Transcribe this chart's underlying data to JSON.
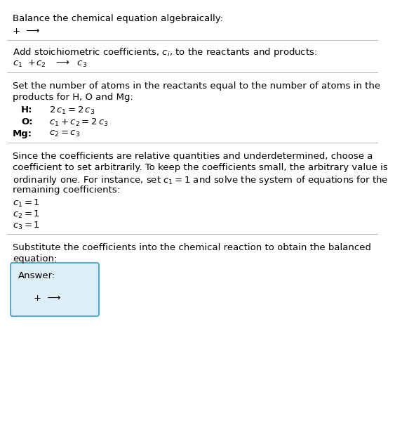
{
  "title": "Balance the chemical equation algebraically:",
  "line1": "+  ⟶",
  "section1_header": "Add stoichiometric coefficients, $c_i$, to the reactants and products:",
  "section1_eq_parts": [
    "$c_1$  +$c_2$",
    "  ⟶ $c_3$"
  ],
  "section2_line1": "Set the number of atoms in the reactants equal to the number of atoms in the",
  "section2_line2": "products for H, O and Mg:",
  "section3_line1": "Since the coefficients are relative quantities and underdetermined, choose a",
  "section3_line2": "coefficient to set arbitrarily. To keep the coefficients small, the arbitrary value is",
  "section3_line3": "ordinarily one. For instance, set $c_1 = 1$ and solve the system of equations for the",
  "section3_line4": "remaining coefficients:",
  "section4_line1": "Substitute the coefficients into the chemical reaction to obtain the balanced",
  "section4_line2": "equation:",
  "answer_label": "Answer:",
  "answer_eq": "+  ⟶",
  "bg_color": "#ffffff",
  "text_color": "#000000",
  "box_bg": "#ddeef7",
  "box_border": "#55aacc",
  "separator_color": "#bbbbbb",
  "fs_body": 9.5,
  "fs_eq": 9.5,
  "fs_title": 9.5
}
